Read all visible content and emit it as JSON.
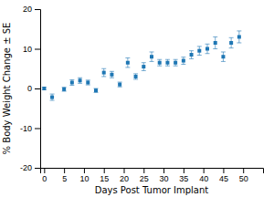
{
  "chart_data": {
    "type": "scatter",
    "xlabel": "Days Post Tumor Implant",
    "ylabel": "% Body Weight Change ± SE",
    "x": [
      0,
      2,
      5,
      7,
      9,
      11,
      13,
      15,
      17,
      19,
      21,
      23,
      25,
      27,
      29,
      31,
      33,
      35,
      37,
      39,
      41,
      43,
      45,
      47,
      49
    ],
    "values": [
      0.0,
      -2.2,
      -0.2,
      1.5,
      2.0,
      1.5,
      -0.5,
      4.0,
      3.5,
      1.0,
      6.5,
      3.0,
      5.5,
      8.0,
      6.5,
      6.5,
      6.5,
      7.0,
      8.5,
      9.5,
      10.0,
      11.5,
      8.0,
      11.5,
      13.0
    ],
    "errors": [
      0.3,
      0.8,
      0.5,
      0.7,
      0.7,
      0.6,
      0.5,
      1.0,
      0.8,
      0.6,
      1.2,
      0.7,
      1.0,
      1.2,
      0.8,
      0.8,
      0.8,
      0.9,
      1.0,
      1.1,
      1.2,
      1.5,
      1.2,
      1.3,
      1.5
    ],
    "marker": "square",
    "xlim": [
      -1,
      55
    ],
    "ylim": [
      -20,
      20
    ],
    "xticks": [
      0,
      5,
      10,
      15,
      20,
      25,
      30,
      35,
      40,
      45,
      50
    ],
    "yticks": [
      -20,
      -10,
      0,
      10,
      20
    ],
    "grid": false
  }
}
